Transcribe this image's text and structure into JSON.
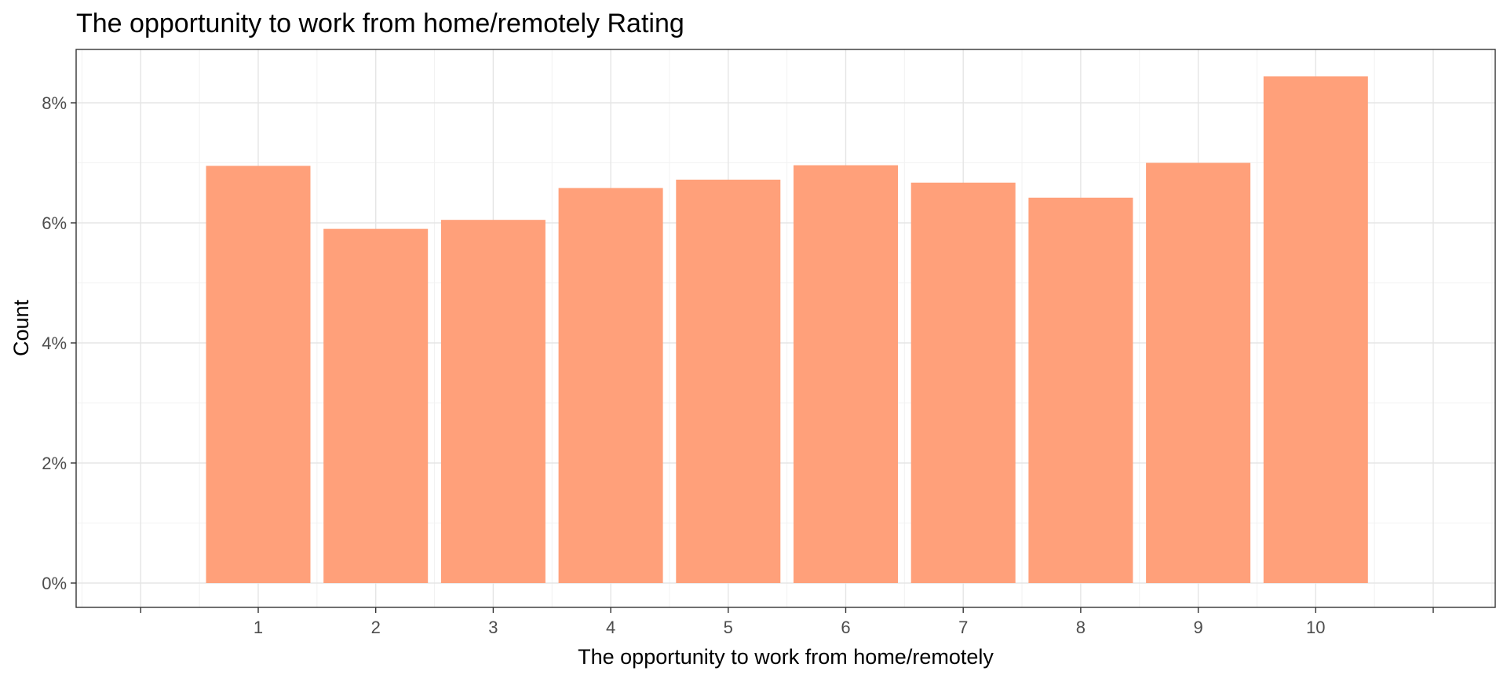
{
  "chart_data": {
    "type": "bar",
    "title": "The opportunity to work from home/remotely Rating",
    "xlabel": "The opportunity to work from home/remotely",
    "ylabel": "Count",
    "categories": [
      "1",
      "2",
      "3",
      "4",
      "5",
      "6",
      "7",
      "8",
      "9",
      "10"
    ],
    "values": [
      6.95,
      5.9,
      6.05,
      6.58,
      6.72,
      6.96,
      6.67,
      6.42,
      7.0,
      8.44
    ],
    "value_unit": "%",
    "ylim": [
      0,
      8.8
    ],
    "yticks": [
      0,
      2,
      4,
      6,
      8
    ],
    "ytick_labels": [
      "0%",
      "2%",
      "4%",
      "6%",
      "8%"
    ],
    "grid": true,
    "bar_color": "#FFA07A"
  }
}
